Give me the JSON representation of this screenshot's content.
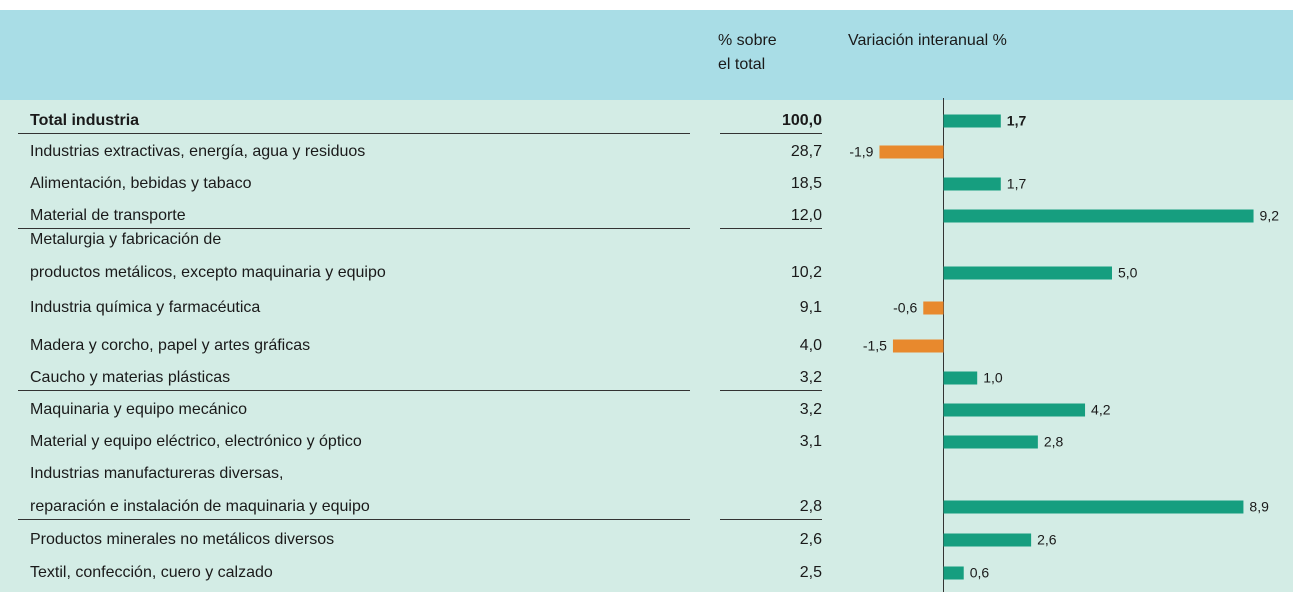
{
  "chart_data": {
    "type": "bar",
    "share_header": [
      "% sobre",
      "el total"
    ],
    "value_header": "Variación interanual %",
    "categories": [
      "Total industria",
      "Industrias extractivas, energía, agua y residuos",
      "Alimentación, bebidas y tabaco",
      "Material de transporte",
      "Metalurgia y fabricación de\nproductos metálicos, excepto maquinaria y equipo",
      "Industria química y farmacéutica",
      "Madera y corcho, papel y artes gráficas",
      "Caucho y materias plásticas",
      "Maquinaria y equipo mecánico",
      "Material y equipo eléctrico, electrónico y óptico",
      "Industrias manufactureras diversas,\nreparación e instalación de maquinaria y equipo",
      "Productos minerales no metálicos diversos",
      "Textil, confección, cuero y calzado"
    ],
    "shares": [
      "100,0",
      "28,7",
      "18,5",
      "12,0",
      "10,2",
      "9,1",
      "4,0",
      "3,2",
      "3,2",
      "3,1",
      "2,8",
      "2,6",
      "2,5"
    ],
    "values": [
      1.7,
      -1.9,
      1.7,
      9.2,
      5.0,
      -0.6,
      -1.5,
      1.0,
      4.2,
      2.8,
      8.9,
      2.6,
      0.6
    ],
    "value_labels": [
      "1,7",
      "-1,9",
      "1,7",
      "9,2",
      "5,0",
      "-0,6",
      "-1,5",
      "1,0",
      "4,2",
      "2,8",
      "8,9",
      "2,6",
      "0,6"
    ],
    "positive_color": "#169e7f",
    "negative_color": "#e8892d",
    "bold_rows": [
      0
    ],
    "separators_after": [
      0,
      3,
      7,
      10
    ]
  }
}
